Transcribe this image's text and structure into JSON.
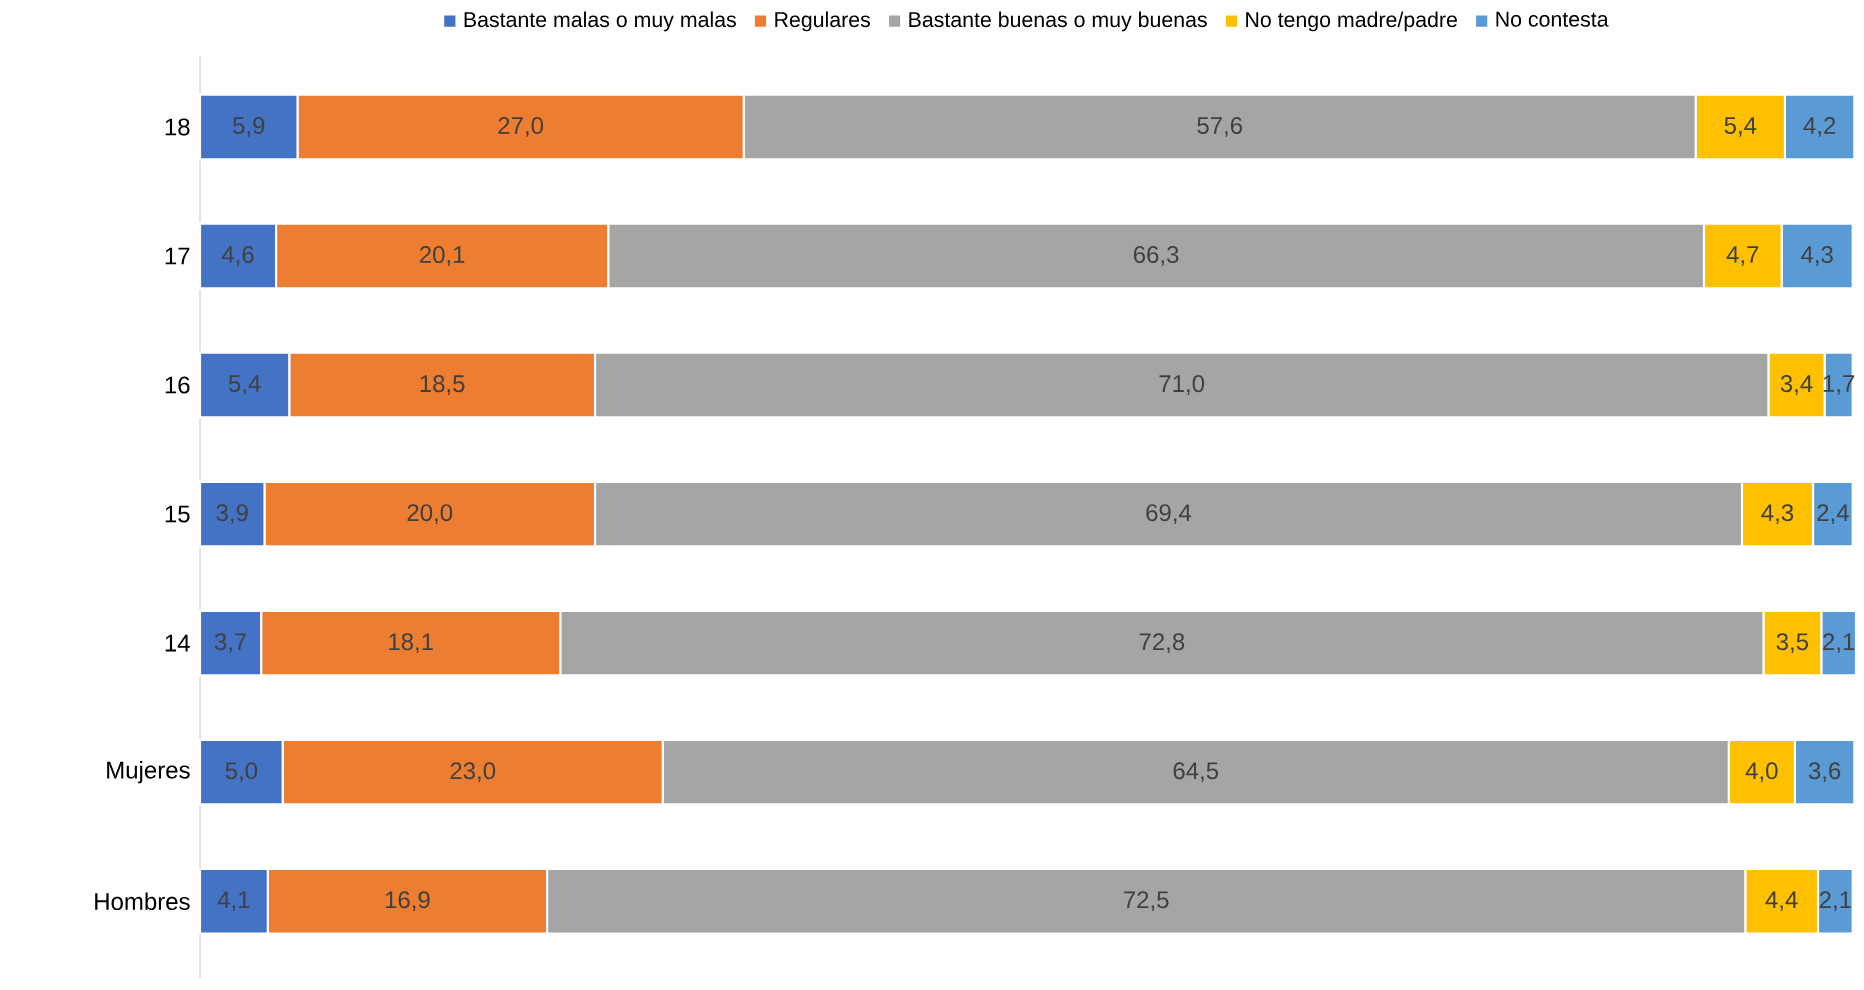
{
  "chart_data": {
    "type": "bar",
    "orientation": "horizontal",
    "stacked": true,
    "legend": "top",
    "categories": [
      "18",
      "17",
      "16",
      "15",
      "14",
      "Mujeres",
      "Hombres"
    ],
    "series": [
      {
        "name": "Bastante malas o muy malas",
        "color": "#4472c4",
        "values": [
          5.9,
          4.6,
          5.4,
          3.9,
          3.7,
          5.0,
          4.1
        ],
        "value_labels": [
          "5,9",
          "4,6",
          "5,4",
          "3,9",
          "3,7",
          "5,0",
          "4,1"
        ]
      },
      {
        "name": "Regulares",
        "color": "#ed7d31",
        "values": [
          27.0,
          20.1,
          18.5,
          20.0,
          18.1,
          23.0,
          16.9
        ],
        "value_labels": [
          "27,0",
          "20,1",
          "18,5",
          "20,0",
          "18,1",
          "23,0",
          "16,9"
        ]
      },
      {
        "name": "Bastante buenas o muy buenas",
        "color": "#a5a5a5",
        "values": [
          57.6,
          66.3,
          71.0,
          69.4,
          72.8,
          64.5,
          72.5
        ],
        "value_labels": [
          "57,6",
          "66,3",
          "71,0",
          "69,4",
          "72,8",
          "64,5",
          "72,5"
        ]
      },
      {
        "name": "No tengo madre/padre",
        "color": "#ffc000",
        "values": [
          5.4,
          4.7,
          3.4,
          4.3,
          3.5,
          4.0,
          4.4
        ],
        "value_labels": [
          "5,4",
          "4,7",
          "3,4",
          "4,3",
          "3,5",
          "4,0",
          "4,4"
        ]
      },
      {
        "name": "No contesta",
        "color": "#5b9bd5",
        "values": [
          4.2,
          4.3,
          1.7,
          2.4,
          2.1,
          3.6,
          2.1
        ],
        "value_labels": [
          "4,2",
          "4,3",
          "1,7",
          "2,4",
          "2,1",
          "3,6",
          "2,1"
        ]
      }
    ]
  }
}
